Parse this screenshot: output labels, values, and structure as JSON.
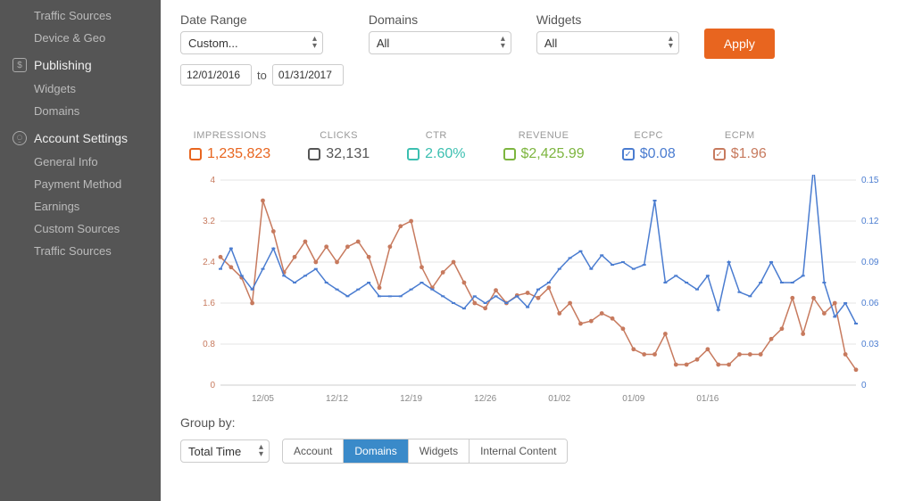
{
  "sidebar": {
    "top_items": [
      "Traffic Sources",
      "Device & Geo"
    ],
    "sections": [
      {
        "icon": "$",
        "icon_shape": "square",
        "title": "Publishing",
        "items": [
          "Widgets",
          "Domains"
        ]
      },
      {
        "icon": "⍜",
        "icon_shape": "circle",
        "title": "Account Settings",
        "items": [
          "General Info",
          "Payment Method",
          "Earnings",
          "Custom Sources",
          "Traffic Sources"
        ]
      }
    ]
  },
  "filters": {
    "date_range": {
      "label": "Date Range",
      "select_value": "Custom...",
      "from": "12/01/2016",
      "to_label": "to",
      "to": "01/31/2017"
    },
    "domains": {
      "label": "Domains",
      "select_value": "All"
    },
    "widgets": {
      "label": "Widgets",
      "select_value": "All"
    },
    "apply_label": "Apply"
  },
  "metrics": [
    {
      "key": "impressions",
      "label": "IMPRESSIONS",
      "value": "1,235,823",
      "color": "#e8651f",
      "checked": false
    },
    {
      "key": "clicks",
      "label": "CLICKS",
      "value": "32,131",
      "color": "#555555",
      "checked": false
    },
    {
      "key": "ctr",
      "label": "CTR",
      "value": "2.60%",
      "color": "#3bbfb0",
      "checked": false
    },
    {
      "key": "revenue",
      "label": "REVENUE",
      "value": "$2,425.99",
      "color": "#7db53f",
      "checked": false
    },
    {
      "key": "ecpc",
      "label": "eCPC",
      "value": "$0.08",
      "color": "#4a7cd0",
      "checked": true
    },
    {
      "key": "ecpm",
      "label": "eCPM",
      "value": "$1.96",
      "color": "#c77a5e",
      "checked": true
    }
  ],
  "chart": {
    "type": "line",
    "background_color": "#ffffff",
    "grid_color": "#e6e6e6",
    "axis_color": "#cccccc",
    "x_categories": [
      "12/05",
      "12/12",
      "12/19",
      "12/26",
      "01/02",
      "01/09",
      "01/16"
    ],
    "y_left": {
      "min": 0,
      "max": 4,
      "ticks": [
        0,
        0.8,
        1.6,
        2.4,
        3.2,
        4
      ],
      "color": "#c77a5e"
    },
    "y_right": {
      "min": 0,
      "max": 0.15,
      "ticks": [
        0,
        0.03,
        0.06,
        0.09,
        0.12,
        0.15
      ],
      "color": "#4a7cd0"
    },
    "series": [
      {
        "name": "eCPM",
        "color": "#c77a5e",
        "axis": "left",
        "line_width": 1.5,
        "marker": "circle",
        "marker_size": 3,
        "values": [
          2.5,
          2.3,
          2.1,
          1.6,
          3.6,
          3.0,
          2.2,
          2.5,
          2.8,
          2.4,
          2.7,
          2.4,
          2.7,
          2.8,
          2.5,
          1.9,
          2.7,
          3.1,
          3.2,
          2.3,
          1.9,
          2.2,
          2.4,
          2.0,
          1.6,
          1.5,
          1.85,
          1.6,
          1.75,
          1.8,
          1.7,
          1.9,
          1.4,
          1.6,
          1.2,
          1.25,
          1.4,
          1.3,
          1.1,
          0.7,
          0.6,
          0.6,
          1.0,
          0.4,
          0.4,
          0.5,
          0.7,
          0.4,
          0.4,
          0.6,
          0.6,
          0.6,
          0.9,
          1.1,
          1.7,
          1.0,
          1.7,
          1.4,
          1.6,
          0.6,
          0.3
        ]
      },
      {
        "name": "eCPC",
        "color": "#4a7cd0",
        "axis": "right",
        "line_width": 1.5,
        "marker": "tick",
        "marker_size": 3,
        "values": [
          0.085,
          0.1,
          0.08,
          0.07,
          0.085,
          0.1,
          0.08,
          0.075,
          0.08,
          0.085,
          0.075,
          0.07,
          0.065,
          0.07,
          0.075,
          0.065,
          0.065,
          0.065,
          0.07,
          0.075,
          0.07,
          0.065,
          0.06,
          0.056,
          0.065,
          0.06,
          0.065,
          0.06,
          0.065,
          0.057,
          0.07,
          0.075,
          0.085,
          0.093,
          0.098,
          0.085,
          0.095,
          0.088,
          0.09,
          0.085,
          0.088,
          0.135,
          0.075,
          0.08,
          0.075,
          0.07,
          0.08,
          0.055,
          0.09,
          0.068,
          0.065,
          0.075,
          0.09,
          0.075,
          0.075,
          0.08,
          0.16,
          0.075,
          0.05,
          0.06,
          0.045
        ]
      }
    ]
  },
  "groupby": {
    "label": "Group by:",
    "time_select": "Total Time",
    "segments": [
      {
        "label": "Account",
        "active": false
      },
      {
        "label": "Domains",
        "active": true
      },
      {
        "label": "Widgets",
        "active": false
      },
      {
        "label": "Internal Content",
        "active": false
      }
    ]
  }
}
